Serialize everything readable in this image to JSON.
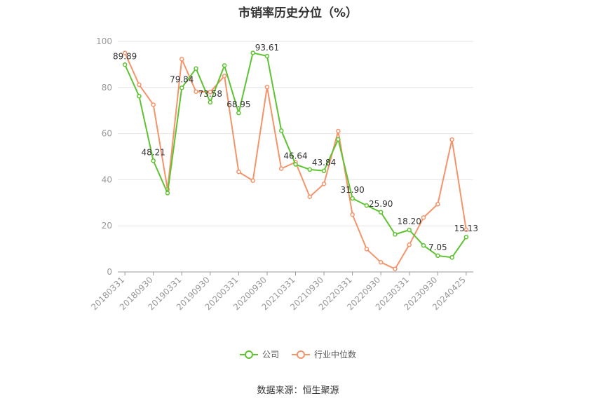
{
  "chart_data": {
    "type": "line",
    "title": "市销率历史分位（%）",
    "x": [
      "20180331",
      "20180630",
      "20180930",
      "20181231",
      "20190331",
      "20190630",
      "20190930",
      "20191231",
      "20200331",
      "20200630",
      "20200930",
      "20201231",
      "20210331",
      "20210630",
      "20210930",
      "20211231",
      "20220331",
      "20220630",
      "20220930",
      "20221231",
      "20230331",
      "20230630",
      "20230930",
      "20231231",
      "20240425"
    ],
    "x_tick_labels": [
      "20180331",
      "20180930",
      "20190331",
      "20190930",
      "20200331",
      "20200930",
      "20210331",
      "20210930",
      "20220331",
      "20220930",
      "20230331",
      "20230930",
      "20240425"
    ],
    "y_ticks": [
      0,
      20,
      40,
      60,
      80,
      100
    ],
    "ylim": [
      0,
      100
    ],
    "series": [
      {
        "name": "公司",
        "color": "#5ec232",
        "values": [
          89.89,
          76.2,
          48.21,
          34.2,
          79.84,
          88.2,
          73.58,
          89.5,
          68.95,
          95.0,
          93.61,
          61.3,
          46.64,
          44.4,
          43.84,
          57.5,
          31.9,
          28.8,
          25.9,
          16.3,
          18.2,
          11.5,
          7.05,
          6.3,
          15.13
        ]
      },
      {
        "name": "行业中位数",
        "color": "#f4946b",
        "values": [
          95.0,
          81.2,
          72.5,
          35.8,
          92.3,
          78.2,
          78.0,
          85.0,
          43.4,
          39.6,
          80.2,
          44.8,
          47.6,
          32.6,
          38.2,
          61.1,
          24.9,
          9.9,
          4.2,
          1.3,
          11.8,
          23.6,
          29.4,
          57.4,
          18.3
        ]
      }
    ],
    "data_labels": [
      {
        "index": 0,
        "text": "89.89"
      },
      {
        "index": 2,
        "text": "48.21"
      },
      {
        "index": 4,
        "text": "79.84"
      },
      {
        "index": 6,
        "text": "73.58"
      },
      {
        "index": 8,
        "text": "68.95"
      },
      {
        "index": 10,
        "text": "93.61"
      },
      {
        "index": 12,
        "text": "46.64"
      },
      {
        "index": 14,
        "text": "43.84"
      },
      {
        "index": 16,
        "text": "31.90"
      },
      {
        "index": 18,
        "text": "25.90"
      },
      {
        "index": 20,
        "text": "18.20"
      },
      {
        "index": 22,
        "text": "7.05"
      },
      {
        "index": 24,
        "text": "15.13"
      }
    ],
    "grid": true,
    "legend_position": "bottom-center"
  },
  "legend": {
    "company_label": "公司",
    "industry_label": "行业中位数"
  },
  "source_note": "数据来源：恒生聚源"
}
